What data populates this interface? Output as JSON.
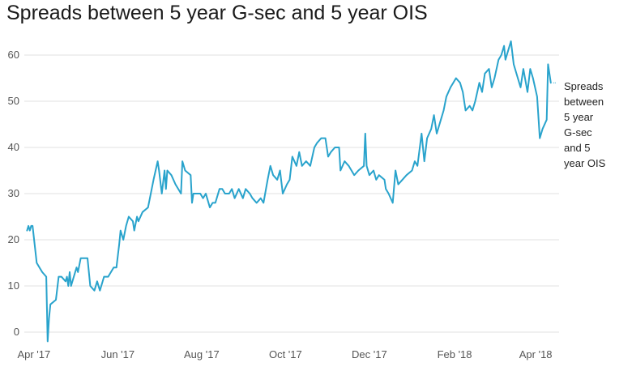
{
  "chart_data": {
    "type": "line",
    "title": "Spreads between 5 year G-sec and 5 year OIS",
    "xlabel": "",
    "ylabel": "",
    "ylim": [
      0,
      65
    ],
    "y_ticks": [
      0,
      10,
      20,
      30,
      40,
      50,
      60
    ],
    "y_tick_labels": [
      "0",
      "10",
      "20",
      "30",
      "40",
      "50",
      "60"
    ],
    "x_range": [
      "2017-03-25",
      "2018-04-18"
    ],
    "x_ticks": [
      "2017-04-01",
      "2017-06-01",
      "2017-08-01",
      "2017-10-01",
      "2017-12-01",
      "2018-02-01",
      "2018-04-01"
    ],
    "x_tick_labels": [
      "Apr '17",
      "Jun '17",
      "Aug '17",
      "Oct '17",
      "Dec '17",
      "Feb '18",
      "Apr '18"
    ],
    "grid": "horizontal",
    "legend_position": "right",
    "color": "#29a3cc",
    "series": [
      {
        "name": "Spreads between 5 year G-sec and 5 year OIS",
        "points": [
          [
            "2017-03-27",
            22
          ],
          [
            "2017-03-28",
            23
          ],
          [
            "2017-03-29",
            22
          ],
          [
            "2017-03-30",
            23
          ],
          [
            "2017-03-31",
            23
          ],
          [
            "2017-04-03",
            15
          ],
          [
            "2017-04-05",
            14
          ],
          [
            "2017-04-07",
            13
          ],
          [
            "2017-04-10",
            12
          ],
          [
            "2017-04-11",
            -2
          ],
          [
            "2017-04-12",
            3
          ],
          [
            "2017-04-13",
            6
          ],
          [
            "2017-04-17",
            7
          ],
          [
            "2017-04-19",
            12
          ],
          [
            "2017-04-21",
            12
          ],
          [
            "2017-04-24",
            11
          ],
          [
            "2017-04-25",
            12
          ],
          [
            "2017-04-26",
            10
          ],
          [
            "2017-04-27",
            13
          ],
          [
            "2017-04-28",
            10
          ],
          [
            "2017-05-02",
            14
          ],
          [
            "2017-05-03",
            13
          ],
          [
            "2017-05-05",
            16
          ],
          [
            "2017-05-10",
            16
          ],
          [
            "2017-05-12",
            10
          ],
          [
            "2017-05-15",
            9
          ],
          [
            "2017-05-17",
            11
          ],
          [
            "2017-05-19",
            9
          ],
          [
            "2017-05-22",
            12
          ],
          [
            "2017-05-25",
            12
          ],
          [
            "2017-05-29",
            14
          ],
          [
            "2017-05-31",
            14
          ],
          [
            "2017-06-02",
            19
          ],
          [
            "2017-06-03",
            22
          ],
          [
            "2017-06-05",
            20
          ],
          [
            "2017-06-07",
            23
          ],
          [
            "2017-06-09",
            25
          ],
          [
            "2017-06-12",
            24
          ],
          [
            "2017-06-13",
            22
          ],
          [
            "2017-06-15",
            25
          ],
          [
            "2017-06-16",
            24
          ],
          [
            "2017-06-19",
            26
          ],
          [
            "2017-06-23",
            27
          ],
          [
            "2017-06-27",
            33
          ],
          [
            "2017-06-30",
            37
          ],
          [
            "2017-07-01",
            35
          ],
          [
            "2017-07-03",
            30
          ],
          [
            "2017-07-05",
            35
          ],
          [
            "2017-07-06",
            31
          ],
          [
            "2017-07-07",
            35
          ],
          [
            "2017-07-10",
            34
          ],
          [
            "2017-07-13",
            32
          ],
          [
            "2017-07-15",
            31
          ],
          [
            "2017-07-17",
            30
          ],
          [
            "2017-07-18",
            37
          ],
          [
            "2017-07-20",
            35
          ],
          [
            "2017-07-24",
            34
          ],
          [
            "2017-07-25",
            28
          ],
          [
            "2017-07-26",
            30
          ],
          [
            "2017-07-28",
            30
          ],
          [
            "2017-07-31",
            30
          ],
          [
            "2017-08-02",
            29
          ],
          [
            "2017-08-04",
            30
          ],
          [
            "2017-08-07",
            27
          ],
          [
            "2017-08-09",
            28
          ],
          [
            "2017-08-11",
            28
          ],
          [
            "2017-08-14",
            31
          ],
          [
            "2017-08-16",
            31
          ],
          [
            "2017-08-18",
            30
          ],
          [
            "2017-08-21",
            30
          ],
          [
            "2017-08-23",
            31
          ],
          [
            "2017-08-25",
            29
          ],
          [
            "2017-08-28",
            31
          ],
          [
            "2017-08-31",
            29
          ],
          [
            "2017-09-02",
            31
          ],
          [
            "2017-09-05",
            30
          ],
          [
            "2017-09-07",
            29
          ],
          [
            "2017-09-10",
            28
          ],
          [
            "2017-09-13",
            29
          ],
          [
            "2017-09-15",
            28
          ],
          [
            "2017-09-18",
            33
          ],
          [
            "2017-09-20",
            36
          ],
          [
            "2017-09-22",
            34
          ],
          [
            "2017-09-25",
            33
          ],
          [
            "2017-09-27",
            35
          ],
          [
            "2017-09-29",
            30
          ],
          [
            "2017-10-02",
            32
          ],
          [
            "2017-10-04",
            33
          ],
          [
            "2017-10-06",
            38
          ],
          [
            "2017-10-09",
            36
          ],
          [
            "2017-10-11",
            39
          ],
          [
            "2017-10-13",
            36
          ],
          [
            "2017-10-16",
            37
          ],
          [
            "2017-10-19",
            36
          ],
          [
            "2017-10-22",
            40
          ],
          [
            "2017-10-24",
            41
          ],
          [
            "2017-10-27",
            42
          ],
          [
            "2017-10-30",
            42
          ],
          [
            "2017-11-01",
            38
          ],
          [
            "2017-11-03",
            39
          ],
          [
            "2017-11-06",
            40
          ],
          [
            "2017-11-09",
            40
          ],
          [
            "2017-11-10",
            35
          ],
          [
            "2017-11-13",
            37
          ],
          [
            "2017-11-16",
            36
          ],
          [
            "2017-11-20",
            34
          ],
          [
            "2017-11-23",
            35
          ],
          [
            "2017-11-27",
            36
          ],
          [
            "2017-11-28",
            43
          ],
          [
            "2017-11-29",
            36
          ],
          [
            "2017-12-01",
            34
          ],
          [
            "2017-12-04",
            35
          ],
          [
            "2017-12-06",
            33
          ],
          [
            "2017-12-08",
            34
          ],
          [
            "2017-12-12",
            33
          ],
          [
            "2017-12-13",
            31
          ],
          [
            "2017-12-15",
            30
          ],
          [
            "2017-12-18",
            28
          ],
          [
            "2017-12-20",
            35
          ],
          [
            "2017-12-22",
            32
          ],
          [
            "2017-12-25",
            33
          ],
          [
            "2017-12-28",
            34
          ],
          [
            "2018-01-01",
            35
          ],
          [
            "2018-01-03",
            37
          ],
          [
            "2018-01-05",
            36
          ],
          [
            "2018-01-08",
            43
          ],
          [
            "2018-01-10",
            37
          ],
          [
            "2018-01-12",
            42
          ],
          [
            "2018-01-15",
            44
          ],
          [
            "2018-01-17",
            47
          ],
          [
            "2018-01-19",
            43
          ],
          [
            "2018-01-22",
            46
          ],
          [
            "2018-01-24",
            48
          ],
          [
            "2018-01-26",
            51
          ],
          [
            "2018-01-29",
            53
          ],
          [
            "2018-01-31",
            54
          ],
          [
            "2018-02-02",
            55
          ],
          [
            "2018-02-05",
            54
          ],
          [
            "2018-02-07",
            52
          ],
          [
            "2018-02-09",
            48
          ],
          [
            "2018-02-12",
            49
          ],
          [
            "2018-02-14",
            48
          ],
          [
            "2018-02-16",
            50
          ],
          [
            "2018-02-19",
            54
          ],
          [
            "2018-02-21",
            52
          ],
          [
            "2018-02-23",
            56
          ],
          [
            "2018-02-26",
            57
          ],
          [
            "2018-02-28",
            53
          ],
          [
            "2018-03-02",
            55
          ],
          [
            "2018-03-05",
            59
          ],
          [
            "2018-03-07",
            60
          ],
          [
            "2018-03-09",
            62
          ],
          [
            "2018-03-10",
            59
          ],
          [
            "2018-03-12",
            61
          ],
          [
            "2018-03-14",
            63
          ],
          [
            "2018-03-16",
            58
          ],
          [
            "2018-03-19",
            55
          ],
          [
            "2018-03-21",
            53
          ],
          [
            "2018-03-23",
            57
          ],
          [
            "2018-03-26",
            52
          ],
          [
            "2018-03-28",
            57
          ],
          [
            "2018-03-30",
            55
          ],
          [
            "2018-04-02",
            51
          ],
          [
            "2018-04-04",
            42
          ],
          [
            "2018-04-06",
            44
          ],
          [
            "2018-04-09",
            46
          ],
          [
            "2018-04-10",
            58
          ],
          [
            "2018-04-12",
            54
          ]
        ]
      }
    ],
    "legend_label": [
      "Spreads",
      "between",
      "5 year",
      "G-sec",
      "and 5",
      "year OIS"
    ]
  }
}
